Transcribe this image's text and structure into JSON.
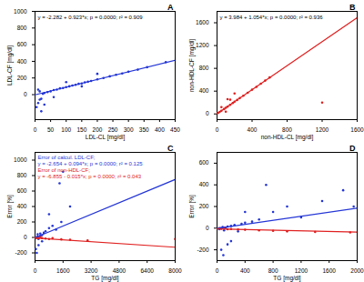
{
  "chart_data": [
    {
      "type": "scatter",
      "title": "A",
      "x_label": "LDL-CL [mg/dl]",
      "y_label": "LDL-CF [mg/dl]",
      "annotation": "y = -2.282 + 0.923*x; p = 0.0000; r² = 0.909",
      "xlim": [
        0,
        450
      ],
      "xticks": [
        0,
        50,
        100,
        150,
        200,
        250,
        300,
        350,
        400,
        450
      ],
      "ylim": [
        -300,
        1000
      ],
      "yticks": [
        0,
        200,
        400,
        600,
        800,
        1000
      ],
      "grid": false,
      "series": [
        {
          "type": "scatter",
          "color": "#2436d6",
          "marker": "circle",
          "x": [
            5,
            10,
            15,
            20,
            25,
            30,
            40,
            50,
            60,
            70,
            80,
            90,
            100,
            110,
            120,
            130,
            140,
            150,
            160,
            170,
            180,
            200,
            220,
            240,
            260,
            280,
            300,
            330,
            360,
            420,
            10,
            20,
            30,
            15,
            60,
            100,
            150,
            200
          ],
          "values": [
            -150,
            -100,
            -60,
            -200,
            10,
            20,
            30,
            40,
            55,
            60,
            75,
            80,
            90,
            100,
            110,
            118,
            130,
            135,
            148,
            155,
            165,
            183,
            200,
            220,
            238,
            255,
            275,
            300,
            330,
            390,
            60,
            -50,
            -120,
            40,
            -30,
            150,
            100,
            250
          ]
        },
        {
          "type": "line",
          "color": "#2436d6",
          "line_style": "solid",
          "x": [
            0,
            450
          ],
          "values": [
            -2.3,
            413.1
          ]
        }
      ]
    },
    {
      "type": "scatter",
      "title": "B",
      "x_label": "non-HDL-CL [mg/dl]",
      "y_label": "non-HDL-CF [mg/dl]",
      "annotation": "y = 3.984 + 1.054*x; p = 0.0000; r² = 0.936",
      "xlim": [
        0,
        1600
      ],
      "xticks": [
        0,
        400,
        800,
        1200,
        1600
      ],
      "ylim": [
        -100,
        1800
      ],
      "yticks": [
        0,
        400,
        800,
        1200,
        1600
      ],
      "grid": false,
      "series": [
        {
          "type": "scatter",
          "color": "#e02020",
          "marker": "circle",
          "x": [
            10,
            30,
            50,
            80,
            100,
            120,
            150,
            180,
            200,
            230,
            260,
            300,
            350,
            400,
            450,
            500,
            550,
            600,
            50,
            100,
            150,
            1200,
            200,
            120
          ],
          "values": [
            15,
            35,
            55,
            85,
            108,
            128,
            160,
            192,
            215,
            245,
            278,
            318,
            370,
            425,
            475,
            530,
            585,
            640,
            120,
            40,
            250,
            200,
            360,
            260
          ]
        },
        {
          "type": "line",
          "color": "#e02020",
          "line_style": "solid",
          "x": [
            0,
            1600
          ],
          "values": [
            4.0,
            1690.4
          ]
        }
      ]
    },
    {
      "type": "scatter",
      "title": "C",
      "x_label": "TG [mg/dl]",
      "y_label": "Error [%]",
      "xlim": [
        0,
        8000
      ],
      "xticks": [
        0,
        1600,
        3200,
        4800,
        6400,
        8000
      ],
      "ylim": [
        -300,
        1100
      ],
      "yticks": [
        -200,
        0,
        200,
        400,
        600,
        800,
        1000
      ],
      "grid": false,
      "series": [
        {
          "type": "scatter",
          "name": "Error of calcul. LDL-CF;",
          "equation": "y = -2.654 + 0.094*x; p = 0.0000; r² = 0.125",
          "color": "#2436d6",
          "marker": "circle",
          "x": [
            50,
            100,
            150,
            200,
            300,
            400,
            500,
            600,
            800,
            1000,
            1200,
            1500,
            2000,
            50,
            100,
            200,
            300,
            150,
            400,
            800,
            1400,
            1600
          ],
          "values": [
            -5,
            0,
            10,
            -20,
            20,
            30,
            60,
            80,
            120,
            150,
            100,
            200,
            400,
            -150,
            -200,
            -100,
            50,
            40,
            -50,
            300,
            700,
            850
          ]
        },
        {
          "type": "scatter",
          "name": "Error of non-HDL-CF;",
          "equation": "y = -6.855 - 0.015*x; p = 0.0000; r² = 0.043",
          "color": "#e02020",
          "marker": "circle",
          "x": [
            50,
            100,
            200,
            300,
            400,
            600,
            800,
            1000,
            1500,
            2000,
            3000,
            8000
          ],
          "values": [
            0,
            -5,
            -10,
            5,
            -8,
            -15,
            -20,
            -10,
            -25,
            -30,
            -40,
            -20
          ]
        },
        {
          "type": "line",
          "color": "#2436d6",
          "line_style": "solid",
          "x": [
            0,
            8000
          ],
          "values": [
            -2.7,
            749.3
          ]
        },
        {
          "type": "line",
          "color": "#e02020",
          "line_style": "solid",
          "x": [
            0,
            8000
          ],
          "values": [
            -6.9,
            -126.9
          ]
        }
      ]
    },
    {
      "type": "scatter",
      "title": "D",
      "x_label": "TG [mg/dl]",
      "y_label": "Error [%]",
      "xlim": [
        0,
        2000
      ],
      "xticks": [
        0,
        400,
        800,
        1200,
        1600,
        2000
      ],
      "ylim": [
        -300,
        700
      ],
      "yticks": [
        -200,
        0,
        200,
        400,
        600
      ],
      "grid": false,
      "series": [
        {
          "type": "scatter",
          "color": "#2436d6",
          "marker": "circle",
          "x": [
            30,
            50,
            80,
            100,
            120,
            150,
            200,
            250,
            300,
            350,
            400,
            500,
            600,
            800,
            1000,
            1200,
            1500,
            1800,
            1950,
            60,
            90,
            150,
            200,
            400,
            700
          ],
          "values": [
            -10,
            0,
            10,
            -20,
            5,
            15,
            20,
            30,
            -30,
            40,
            50,
            60,
            80,
            150,
            200,
            100,
            250,
            350,
            200,
            -200,
            -250,
            -150,
            -120,
            150,
            400
          ]
        },
        {
          "type": "scatter",
          "color": "#e02020",
          "marker": "circle",
          "x": [
            30,
            60,
            100,
            150,
            200,
            300,
            400,
            600,
            800,
            1000,
            1400,
            1900
          ],
          "values": [
            0,
            -5,
            5,
            -10,
            -8,
            -12,
            -15,
            -20,
            -25,
            -30,
            -35,
            -40
          ]
        },
        {
          "type": "line",
          "color": "#2436d6",
          "line_style": "solid",
          "x": [
            0,
            2000
          ],
          "values": [
            -2.7,
            185.3
          ]
        },
        {
          "type": "line",
          "color": "#e02020",
          "line_style": "solid",
          "x": [
            0,
            2000
          ],
          "values": [
            -6.9,
            -36.9
          ]
        }
      ]
    }
  ]
}
